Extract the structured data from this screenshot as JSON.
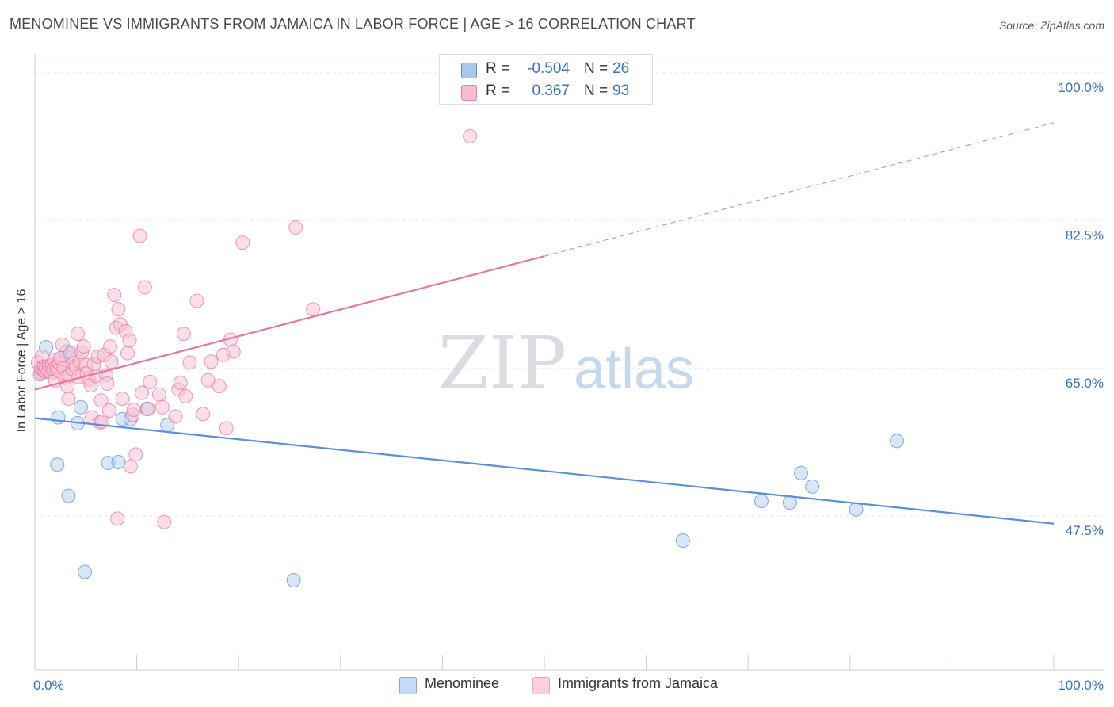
{
  "title": "MENOMINEE VS IMMIGRANTS FROM JAMAICA IN LABOR FORCE | AGE > 16 CORRELATION CHART",
  "source": "Source: ZipAtlas.com",
  "watermark": {
    "zip": "ZIP",
    "atlas": "atlas"
  },
  "stats": [
    {
      "r_label": "R =",
      "r_value": "-0.504",
      "n_label": "N =",
      "n_value": "26",
      "color": "#a9c8ee",
      "border": "#5b8fd6"
    },
    {
      "r_label": "R =",
      "r_value": "0.367",
      "n_label": "N =",
      "n_value": "93",
      "color": "#f6bcd0",
      "border": "#e87fa2"
    }
  ],
  "legend": [
    {
      "label": "Menominee",
      "color": "#c5daf5",
      "border": "#7fa8de"
    },
    {
      "label": "Immigrants from Jamaica",
      "color": "#fad0de",
      "border": "#eba3bb"
    }
  ],
  "chart_data": {
    "type": "scatter",
    "title": "MENOMINEE VS IMMIGRANTS FROM JAMAICA IN LABOR FORCE | AGE > 16 CORRELATION CHART",
    "xlabel": "",
    "ylabel": "In Labor Force | Age > 16",
    "xlim": [
      0,
      100
    ],
    "ylim": [
      29.3,
      101.6
    ],
    "x_tick_labels": [
      {
        "value": 0,
        "label": "0.0%"
      },
      {
        "value": 100,
        "label": "100.0%"
      }
    ],
    "y_tick_labels": [
      {
        "value": 100.0,
        "label": "100.0%"
      },
      {
        "value": 82.5,
        "label": "82.5%"
      },
      {
        "value": 65.0,
        "label": "65.0%"
      },
      {
        "value": 47.5,
        "label": "47.5%"
      }
    ],
    "x_minor_ticks": [
      0,
      10,
      20,
      30,
      40,
      50,
      60,
      70,
      80,
      90,
      100
    ],
    "grid": true,
    "series": [
      {
        "name": "Menominee",
        "color": "#5b8fd6",
        "fill": "#b8d2f2",
        "trend": {
          "x0": 0,
          "y0": 59.1,
          "x1": 100,
          "y1": 46.6,
          "solid_to": 100
        },
        "points": [
          [
            0.6,
            64.5
          ],
          [
            0.9,
            64.9
          ],
          [
            1.1,
            67.5
          ],
          [
            1.7,
            65.0
          ],
          [
            2.3,
            59.2
          ],
          [
            2.2,
            53.6
          ],
          [
            3.1,
            67.0
          ],
          [
            3.3,
            49.9
          ],
          [
            3.6,
            66.4
          ],
          [
            4.2,
            58.5
          ],
          [
            4.5,
            60.4
          ],
          [
            4.9,
            40.9
          ],
          [
            7.2,
            53.8
          ],
          [
            8.2,
            53.9
          ],
          [
            8.6,
            59.0
          ],
          [
            9.4,
            59.0
          ],
          [
            11.0,
            60.2
          ],
          [
            13.0,
            58.3
          ],
          [
            25.4,
            39.9
          ],
          [
            63.6,
            44.6
          ],
          [
            71.3,
            49.3
          ],
          [
            74.1,
            49.1
          ],
          [
            75.2,
            52.6
          ],
          [
            76.3,
            51.0
          ],
          [
            80.6,
            48.3
          ],
          [
            84.6,
            56.4
          ]
        ]
      },
      {
        "name": "Immigrants from Jamaica",
        "color": "#e8759c",
        "fill": "#f7c3d4",
        "trend": {
          "x0": 0,
          "y0": 62.5,
          "x1": 100,
          "y1": 94.1,
          "solid_to": 50
        },
        "points": [
          [
            0.3,
            65.7
          ],
          [
            0.5,
            64.3
          ],
          [
            0.6,
            65.0
          ],
          [
            0.7,
            66.4
          ],
          [
            0.8,
            64.8
          ],
          [
            0.9,
            65.2
          ],
          [
            1.0,
            64.6
          ],
          [
            1.1,
            65.1
          ],
          [
            1.3,
            64.7
          ],
          [
            1.4,
            65.3
          ],
          [
            1.5,
            65.0
          ],
          [
            1.6,
            64.4
          ],
          [
            1.7,
            65.4
          ],
          [
            1.8,
            64.9
          ],
          [
            1.9,
            66.0
          ],
          [
            2.0,
            63.6
          ],
          [
            2.1,
            65.2
          ],
          [
            2.2,
            64.8
          ],
          [
            2.4,
            65.6
          ],
          [
            2.5,
            66.2
          ],
          [
            2.6,
            64.5
          ],
          [
            2.7,
            67.8
          ],
          [
            2.8,
            65.0
          ],
          [
            3.0,
            63.9
          ],
          [
            3.2,
            62.9
          ],
          [
            3.3,
            61.4
          ],
          [
            3.4,
            64.2
          ],
          [
            3.5,
            66.8
          ],
          [
            3.7,
            64.9
          ],
          [
            3.8,
            65.6
          ],
          [
            4.0,
            65.2
          ],
          [
            4.2,
            69.1
          ],
          [
            4.3,
            64.0
          ],
          [
            4.4,
            65.8
          ],
          [
            4.6,
            66.9
          ],
          [
            4.8,
            67.6
          ],
          [
            5.0,
            65.4
          ],
          [
            5.1,
            64.4
          ],
          [
            5.3,
            63.7
          ],
          [
            5.5,
            63.0
          ],
          [
            5.6,
            59.2
          ],
          [
            5.8,
            65.5
          ],
          [
            6.0,
            64.1
          ],
          [
            6.2,
            66.4
          ],
          [
            6.4,
            58.6
          ],
          [
            6.5,
            61.2
          ],
          [
            6.6,
            58.7
          ],
          [
            6.8,
            66.6
          ],
          [
            7.0,
            64.2
          ],
          [
            7.1,
            63.2
          ],
          [
            7.3,
            60.0
          ],
          [
            7.4,
            67.6
          ],
          [
            7.5,
            65.8
          ],
          [
            7.8,
            73.7
          ],
          [
            8.0,
            69.8
          ],
          [
            8.1,
            47.2
          ],
          [
            8.2,
            72.0
          ],
          [
            8.4,
            70.2
          ],
          [
            8.6,
            61.4
          ],
          [
            8.9,
            69.4
          ],
          [
            9.1,
            66.8
          ],
          [
            9.3,
            68.3
          ],
          [
            9.4,
            53.4
          ],
          [
            9.6,
            59.5
          ],
          [
            9.7,
            60.1
          ],
          [
            9.9,
            54.8
          ],
          [
            10.3,
            80.7
          ],
          [
            10.5,
            62.1
          ],
          [
            10.8,
            74.6
          ],
          [
            11.1,
            60.2
          ],
          [
            11.3,
            63.4
          ],
          [
            12.2,
            61.9
          ],
          [
            12.5,
            60.4
          ],
          [
            12.7,
            46.8
          ],
          [
            13.8,
            59.3
          ],
          [
            14.1,
            62.5
          ],
          [
            14.3,
            63.3
          ],
          [
            14.6,
            69.1
          ],
          [
            14.8,
            61.7
          ],
          [
            15.2,
            65.7
          ],
          [
            15.9,
            73.0
          ],
          [
            16.5,
            59.6
          ],
          [
            17.0,
            63.6
          ],
          [
            17.3,
            65.8
          ],
          [
            18.1,
            62.9
          ],
          [
            18.5,
            66.6
          ],
          [
            18.8,
            57.9
          ],
          [
            19.2,
            68.4
          ],
          [
            19.5,
            67.0
          ],
          [
            20.4,
            79.9
          ],
          [
            25.6,
            81.7
          ],
          [
            27.3,
            72.0
          ],
          [
            42.7,
            92.5
          ]
        ]
      }
    ]
  }
}
